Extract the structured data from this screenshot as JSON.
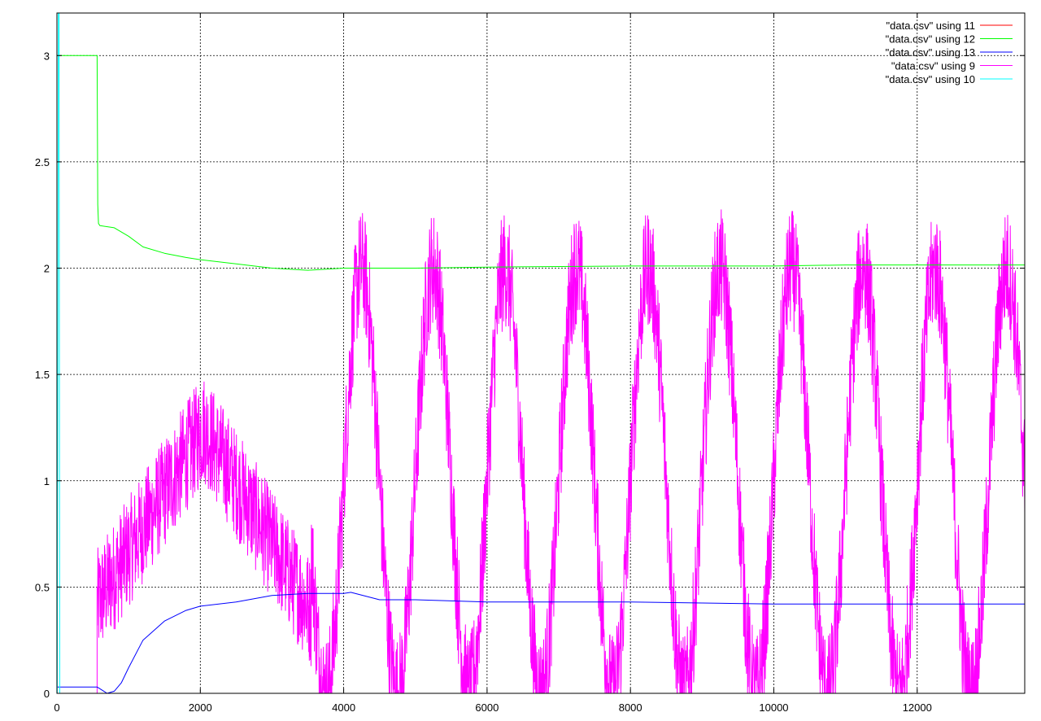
{
  "chart_data": {
    "type": "line",
    "title": "",
    "xlabel": "",
    "ylabel": "",
    "xlim": [
      0,
      13500
    ],
    "ylim": [
      0,
      3.2
    ],
    "grid": true,
    "legend_position": "top-right",
    "x_ticks": [
      0,
      2000,
      4000,
      6000,
      8000,
      10000,
      12000
    ],
    "x_tick_labels": [
      "0",
      "2000",
      "4000",
      "6000",
      "8000",
      "10000",
      "12000"
    ],
    "y_ticks": [
      0,
      0.5,
      1,
      1.5,
      2,
      2.5,
      3
    ],
    "y_tick_labels": [
      "0",
      "0.5",
      "1",
      "1.5",
      "2",
      "2.5",
      "3"
    ],
    "series": [
      {
        "name": "\"data.csv\" using 11",
        "color": "#ff0000",
        "x": [
          0,
          560,
          560,
          13500
        ],
        "y": [
          0,
          0,
          0,
          0
        ]
      },
      {
        "name": "\"data.csv\" using 12",
        "color": "#00ff00",
        "x": [
          0,
          560,
          570,
          580,
          600,
          800,
          1000,
          1200,
          1500,
          1800,
          2000,
          2500,
          3000,
          3500,
          4000,
          5000,
          6000,
          8000,
          10000,
          11000,
          13500
        ],
        "y": [
          3.0,
          3.0,
          2.3,
          2.21,
          2.2,
          2.19,
          2.15,
          2.1,
          2.07,
          2.05,
          2.04,
          2.02,
          2.0,
          1.99,
          2.0,
          2.0,
          2.005,
          2.01,
          2.01,
          2.015,
          2.015
        ]
      },
      {
        "name": "\"data.csv\" using 13",
        "color": "#0000ff",
        "x": [
          0,
          560,
          700,
          800,
          900,
          1000,
          1200,
          1500,
          1800,
          2000,
          2500,
          3000,
          3500,
          4000,
          4100,
          4500,
          5000,
          6000,
          8000,
          10000,
          13500
        ],
        "y": [
          0.03,
          0.03,
          0.0,
          0.01,
          0.05,
          0.12,
          0.25,
          0.34,
          0.39,
          0.41,
          0.43,
          0.46,
          0.47,
          0.47,
          0.475,
          0.44,
          0.44,
          0.43,
          0.43,
          0.42,
          0.42
        ]
      },
      {
        "name": "\"data.csv\" using 9",
        "color": "#ff00ff",
        "segments": [
          {
            "x0": 0,
            "x1": 560,
            "shape": "flat",
            "y0": 0.0
          },
          {
            "x0": 560,
            "x1": 3550,
            "shape": "triangle",
            "y_start": 0.42,
            "peak_x": 2050,
            "y_peak": 1.25,
            "y_end": 0.38,
            "noise": 0.26
          },
          {
            "x0": 3550,
            "x1": 13500,
            "shape": "sine",
            "period": 1000,
            "first_peak_x": 4250,
            "y_mid": 1.0,
            "amplitude": 1.0,
            "noise": 0.28,
            "y_final": 0.85
          }
        ]
      },
      {
        "name": "\"data.csv\" using 10",
        "color": "#00ffff",
        "x": [
          0,
          5,
          20,
          30,
          40,
          13500
        ],
        "y": [
          0,
          0,
          3.2,
          3.2,
          0,
          0
        ]
      }
    ]
  }
}
